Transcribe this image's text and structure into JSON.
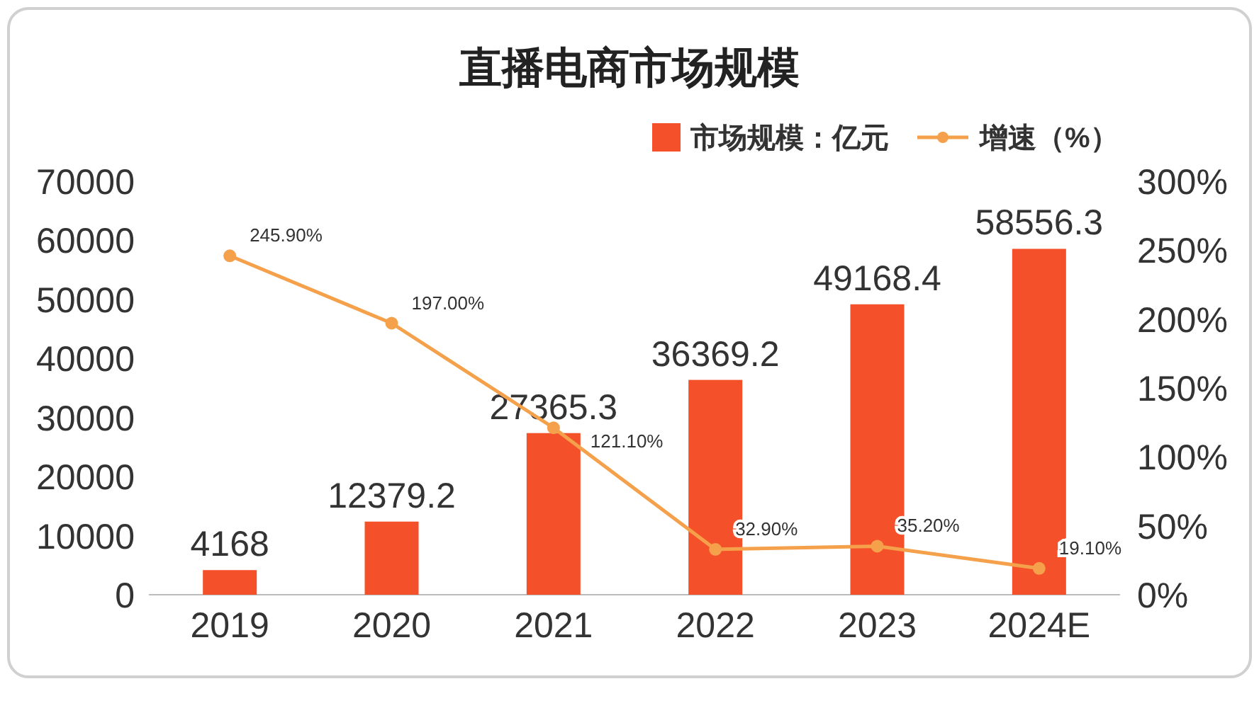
{
  "chart_data": {
    "type": "bar",
    "title": "直播电商市场规模",
    "categories": [
      "2019",
      "2020",
      "2021",
      "2022",
      "2023",
      "2024E"
    ],
    "series": [
      {
        "name": "市场规模：亿元",
        "color": "#f4502a",
        "values": [
          4168,
          12379.2,
          27365.3,
          36369.2,
          49168.4,
          58556.3
        ],
        "value_labels": [
          "4168",
          "12379.2",
          "27365.3",
          "36369.2",
          "49168.4",
          "58556.3"
        ]
      },
      {
        "name": "增速（%）",
        "type": "line",
        "axis": "y2",
        "color": "#f5a04a",
        "marker": "circle",
        "values": [
          245.9,
          197.0,
          121.1,
          32.9,
          35.2,
          19.1
        ],
        "value_labels": [
          "245.90%",
          "197.00%",
          "121.10%",
          "32.90%",
          "35.20%",
          "19.10%"
        ]
      }
    ],
    "ylim": [
      0,
      70000
    ],
    "yticks": [
      0,
      10000,
      20000,
      30000,
      40000,
      50000,
      60000,
      70000
    ],
    "y2lim": [
      0,
      300
    ],
    "y2ticks": [
      {
        "value": 0,
        "label": "0%"
      },
      {
        "value": 50,
        "label": "50%"
      },
      {
        "value": 100,
        "label": "100%"
      },
      {
        "value": 150,
        "label": "150%"
      },
      {
        "value": 200,
        "label": "200%"
      },
      {
        "value": 250,
        "label": "250%"
      },
      {
        "value": 300,
        "label": "300%"
      }
    ],
    "grid": false,
    "legend": "top right"
  }
}
